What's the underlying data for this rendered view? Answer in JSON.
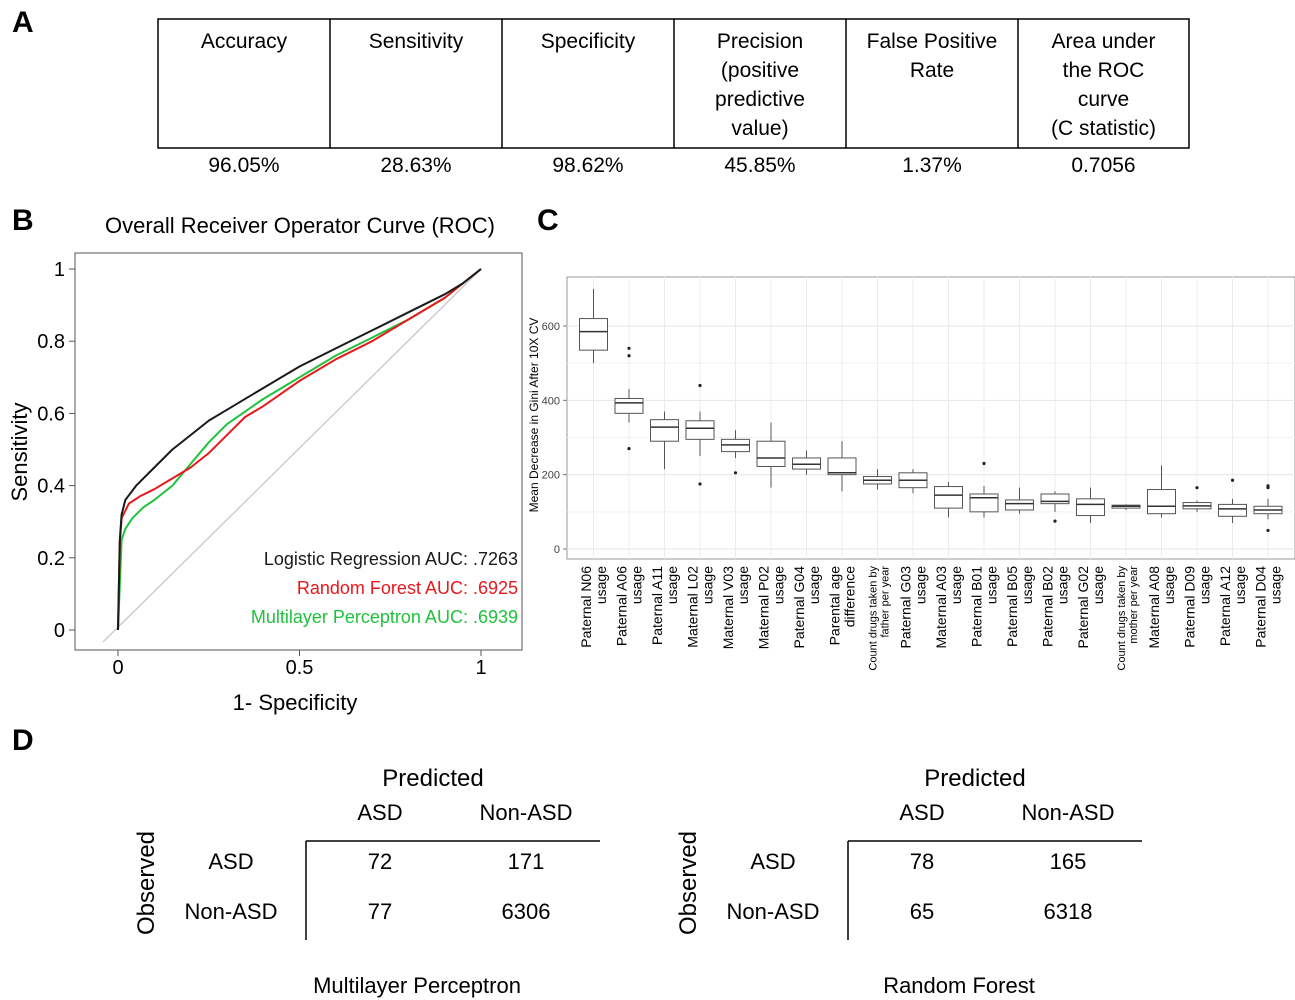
{
  "panels": {
    "a": "A",
    "b": "B",
    "c": "C",
    "d": "D"
  },
  "metrics_table": {
    "headers": [
      [
        "Accuracy"
      ],
      [
        "Sensitivity"
      ],
      [
        "Specificity"
      ],
      [
        "Precision",
        "(positive",
        "predictive",
        "value)"
      ],
      [
        "False Positive",
        "Rate"
      ],
      [
        "Area under",
        "the ROC",
        "curve",
        "(C statistic)"
      ]
    ],
    "values": [
      "96.05%",
      "28.63%",
      "98.62%",
      "45.85%",
      "1.37%",
      "0.7056"
    ]
  },
  "chart_data": [
    {
      "type": "line",
      "title": "Overall Receiver Operator Curve (ROC)",
      "xlabel": "1- Specificity",
      "ylabel": "Sensitivity",
      "xlim": [
        0,
        1
      ],
      "ylim": [
        0,
        1
      ],
      "xticks": [
        "0",
        "0.5",
        "1"
      ],
      "yticks": [
        "0",
        "0.2",
        "0.4",
        "0.6",
        "0.8",
        "1"
      ],
      "grid": false,
      "legend_position": "bottom-right",
      "series": [
        {
          "name": "Logistic Regression AUC: .7263",
          "color": "#1a1a1a",
          "x": [
            0,
            0.005,
            0.01,
            0.02,
            0.05,
            0.1,
            0.15,
            0.2,
            0.25,
            0.3,
            0.4,
            0.5,
            0.6,
            0.7,
            0.8,
            0.9,
            0.95,
            1
          ],
          "y": [
            0,
            0.25,
            0.32,
            0.36,
            0.4,
            0.45,
            0.5,
            0.54,
            0.58,
            0.61,
            0.67,
            0.73,
            0.78,
            0.83,
            0.88,
            0.93,
            0.96,
            1
          ]
        },
        {
          "name": "Random Forest AUC: .6925",
          "color": "#e8191c",
          "x": [
            0,
            0.005,
            0.01,
            0.03,
            0.06,
            0.1,
            0.15,
            0.2,
            0.25,
            0.3,
            0.35,
            0.4,
            0.5,
            0.6,
            0.7,
            0.8,
            0.9,
            0.95,
            1
          ],
          "y": [
            0,
            0.24,
            0.31,
            0.35,
            0.37,
            0.39,
            0.42,
            0.45,
            0.49,
            0.54,
            0.59,
            0.62,
            0.69,
            0.75,
            0.8,
            0.86,
            0.92,
            0.96,
            1
          ]
        },
        {
          "name": "Multilayer Perceptron AUC: .6939",
          "color": "#1fc23c",
          "x": [
            0,
            0.01,
            0.02,
            0.04,
            0.07,
            0.1,
            0.15,
            0.2,
            0.25,
            0.3,
            0.4,
            0.5,
            0.6,
            0.7,
            0.8,
            0.9,
            0.95,
            1
          ],
          "y": [
            0,
            0.25,
            0.28,
            0.31,
            0.34,
            0.36,
            0.4,
            0.46,
            0.52,
            0.57,
            0.64,
            0.7,
            0.76,
            0.81,
            0.86,
            0.92,
            0.96,
            1
          ]
        }
      ]
    },
    {
      "type": "box",
      "ylabel": "Mean Decrease in Gini After 10X CV",
      "ylim": [
        -30,
        740
      ],
      "yticks": [
        "0",
        "200",
        "400",
        "600"
      ],
      "grid": true,
      "categories": [
        [
          "Paternal N06",
          "usage"
        ],
        [
          "Paternal A06",
          "usage"
        ],
        [
          "Paternal A11",
          "usage"
        ],
        [
          "Maternal L02",
          "usage"
        ],
        [
          "Maternal V03",
          "usage"
        ],
        [
          "Maternal P02",
          "usage"
        ],
        [
          "Paternal G04",
          "usage"
        ],
        [
          "Parental age",
          "difference"
        ],
        [
          "Count drugs taken by",
          "father per year"
        ],
        [
          "Paternal G03",
          "usage"
        ],
        [
          "Maternal A03",
          "usage"
        ],
        [
          "Paternal B01",
          "usage"
        ],
        [
          "Paternal B05",
          "usage"
        ],
        [
          "Paternal B02",
          "usage"
        ],
        [
          "Paternal G02",
          "usage"
        ],
        [
          "Count drugs taken by",
          "mother per year"
        ],
        [
          "Maternal A08",
          "usage"
        ],
        [
          "Paternal D09",
          "usage"
        ],
        [
          "Paternal A12",
          "usage"
        ],
        [
          "Paternal D04",
          "usage"
        ]
      ],
      "boxes": [
        {
          "min": 500,
          "q1": 535,
          "median": 585,
          "q3": 620,
          "max": 700,
          "outliers": []
        },
        {
          "min": 340,
          "q1": 365,
          "median": 393,
          "q3": 405,
          "max": 430,
          "outliers": [
            270,
            520,
            540
          ]
        },
        {
          "min": 215,
          "q1": 290,
          "median": 328,
          "q3": 348,
          "max": 370,
          "outliers": []
        },
        {
          "min": 250,
          "q1": 295,
          "median": 325,
          "q3": 345,
          "max": 370,
          "outliers": [
            440,
            175
          ]
        },
        {
          "min": 245,
          "q1": 262,
          "median": 280,
          "q3": 295,
          "max": 320,
          "outliers": [
            205
          ]
        },
        {
          "min": 165,
          "q1": 222,
          "median": 245,
          "q3": 290,
          "max": 340,
          "outliers": []
        },
        {
          "min": 200,
          "q1": 215,
          "median": 228,
          "q3": 245,
          "max": 265,
          "outliers": []
        },
        {
          "min": 155,
          "q1": 200,
          "median": 205,
          "q3": 245,
          "max": 290,
          "outliers": []
        },
        {
          "min": 160,
          "q1": 175,
          "median": 185,
          "q3": 195,
          "max": 215,
          "outliers": []
        },
        {
          "min": 150,
          "q1": 165,
          "median": 185,
          "q3": 205,
          "max": 215,
          "outliers": []
        },
        {
          "min": 85,
          "q1": 110,
          "median": 145,
          "q3": 168,
          "max": 180,
          "outliers": []
        },
        {
          "min": 85,
          "q1": 100,
          "median": 138,
          "q3": 148,
          "max": 170,
          "outliers": [
            230
          ]
        },
        {
          "min": 95,
          "q1": 105,
          "median": 122,
          "q3": 132,
          "max": 165,
          "outliers": []
        },
        {
          "min": 100,
          "q1": 122,
          "median": 128,
          "q3": 148,
          "max": 155,
          "outliers": [
            75
          ]
        },
        {
          "min": 70,
          "q1": 90,
          "median": 120,
          "q3": 135,
          "max": 165,
          "outliers": []
        },
        {
          "min": 105,
          "q1": 110,
          "median": 115,
          "q3": 118,
          "max": 120,
          "outliers": []
        },
        {
          "min": 85,
          "q1": 95,
          "median": 115,
          "q3": 160,
          "max": 225,
          "outliers": []
        },
        {
          "min": 100,
          "q1": 108,
          "median": 116,
          "q3": 125,
          "max": 130,
          "outliers": [
            165
          ]
        },
        {
          "min": 70,
          "q1": 88,
          "median": 108,
          "q3": 120,
          "max": 135,
          "outliers": [
            185
          ]
        },
        {
          "min": 80,
          "q1": 95,
          "median": 105,
          "q3": 115,
          "max": 135,
          "outliers": [
            165,
            170,
            50
          ]
        }
      ]
    }
  ],
  "confusion_matrices": [
    {
      "title": "Multilayer Perceptron",
      "predicted_label": "Predicted",
      "observed_label": "Observed",
      "col_labels": [
        "ASD",
        "Non-ASD"
      ],
      "row_labels": [
        "ASD",
        "Non-ASD"
      ],
      "cells": [
        [
          "72",
          "171"
        ],
        [
          "77",
          "6306"
        ]
      ]
    },
    {
      "title": "Random Forest",
      "predicted_label": "Predicted",
      "observed_label": "Observed",
      "col_labels": [
        "ASD",
        "Non-ASD"
      ],
      "row_labels": [
        "ASD",
        "Non-ASD"
      ],
      "cells": [
        [
          "78",
          "165"
        ],
        [
          "65",
          "6318"
        ]
      ]
    }
  ]
}
